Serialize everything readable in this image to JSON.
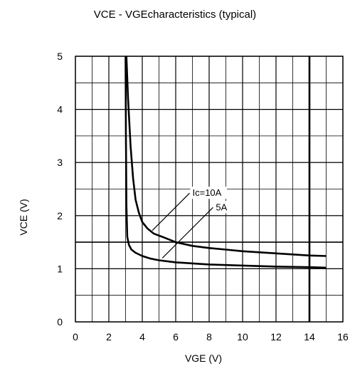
{
  "chart_data": {
    "type": "line",
    "title": "VCE - VGEcharacteristics (typical)",
    "xlabel": "VGE  (V)",
    "ylabel": "VCE (V)",
    "xlim": [
      0,
      16
    ],
    "ylim": [
      0,
      5
    ],
    "x_ticks": [
      "0",
      "2",
      "4",
      "6",
      "8",
      "10",
      "12",
      "14",
      "16"
    ],
    "y_ticks": [
      "0",
      "1",
      "2",
      "3",
      "4",
      "5"
    ],
    "x_minor_step": 1,
    "y_minor_step": 0.5,
    "grid": true,
    "vertical_marker": 14,
    "horizontal_marker": 1.5,
    "series": [
      {
        "name": "Ic=10A",
        "x": [
          3.05,
          3.15,
          3.3,
          3.45,
          3.6,
          3.8,
          4.0,
          4.3,
          4.7,
          5.2,
          6,
          7,
          8,
          9,
          10,
          11,
          12,
          13,
          14,
          15
        ],
        "y": [
          5.0,
          4.2,
          3.3,
          2.7,
          2.3,
          2.05,
          1.88,
          1.76,
          1.66,
          1.6,
          1.5,
          1.43,
          1.39,
          1.36,
          1.33,
          1.31,
          1.29,
          1.27,
          1.25,
          1.24
        ]
      },
      {
        "name": "5A",
        "x": [
          3.0,
          3.02,
          3.05,
          3.1,
          3.2,
          3.35,
          3.6,
          4,
          4.5,
          5,
          6,
          7,
          8,
          9,
          10,
          11,
          12,
          13,
          14,
          15
        ],
        "y": [
          5.0,
          3.5,
          2.2,
          1.6,
          1.45,
          1.36,
          1.3,
          1.24,
          1.19,
          1.16,
          1.12,
          1.1,
          1.08,
          1.07,
          1.06,
          1.05,
          1.04,
          1.035,
          1.03,
          1.02
        ]
      }
    ],
    "annotations": [
      {
        "text": "Ic=10A",
        "series": 0,
        "anchor_x": 4.6,
        "anchor_y": 1.72,
        "label_x": 7.0,
        "label_y": 2.37
      },
      {
        "text": "5A",
        "series": 1,
        "anchor_x": 5.2,
        "anchor_y": 1.2,
        "label_x": 8.4,
        "label_y": 2.1
      }
    ]
  }
}
